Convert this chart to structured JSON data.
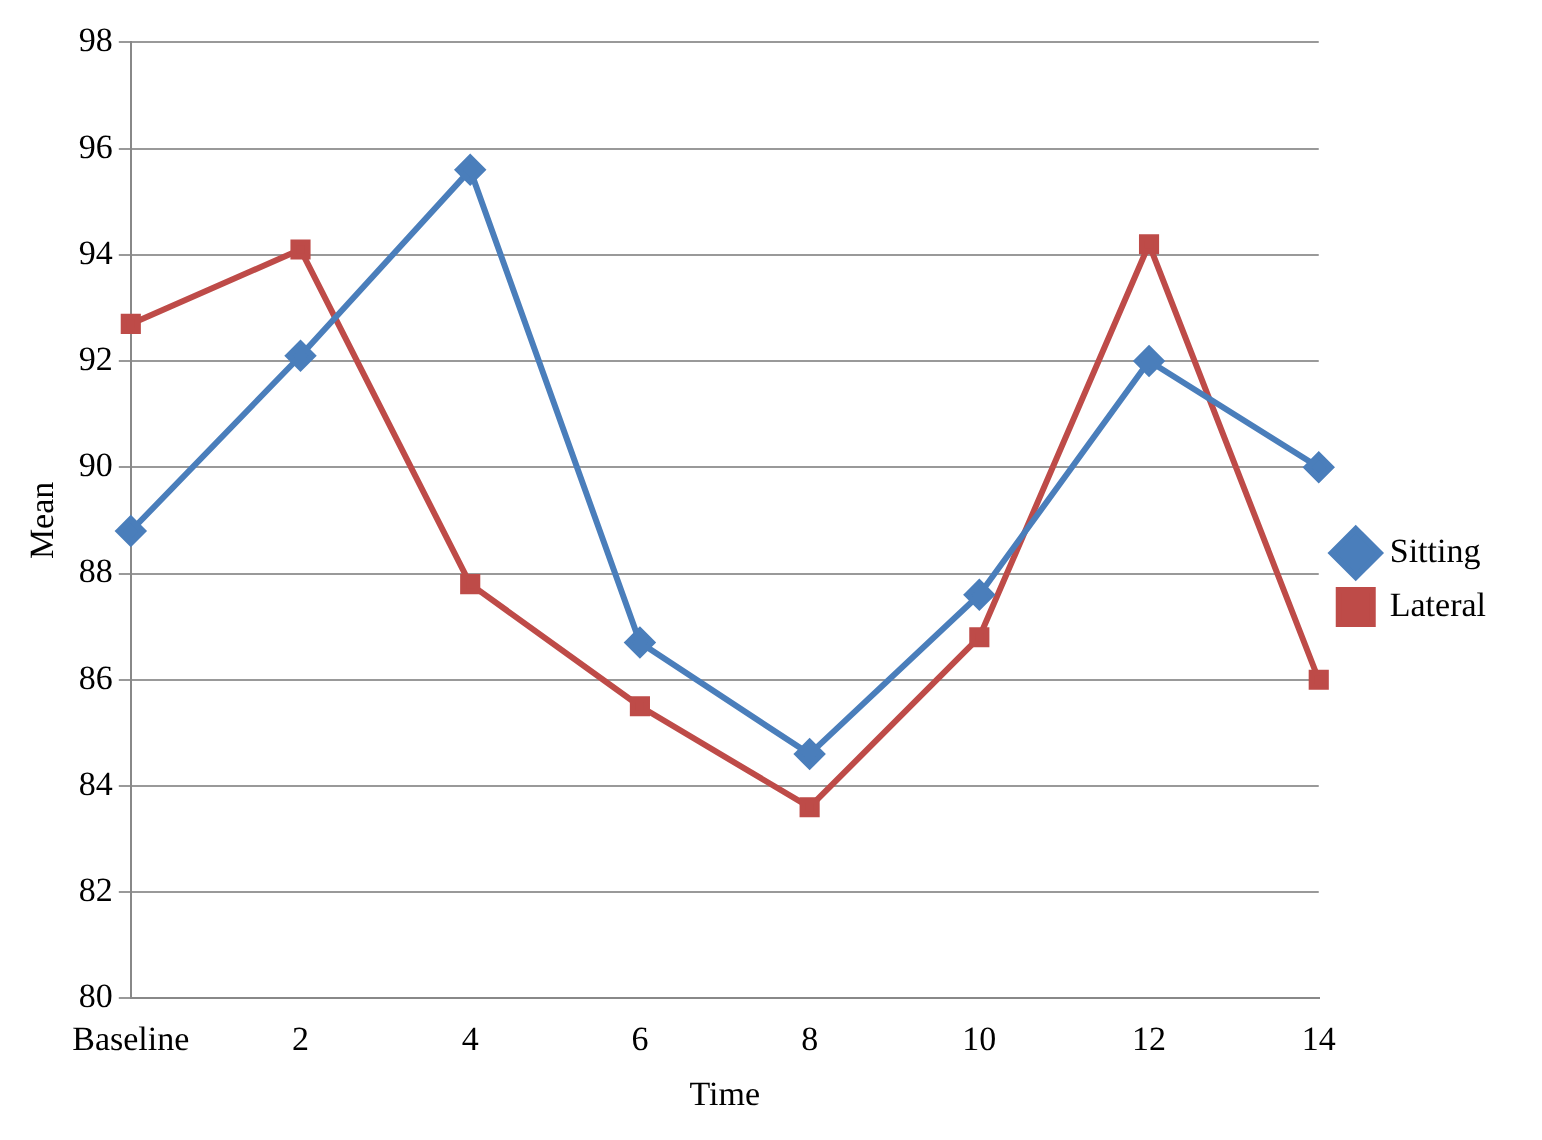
{
  "chart_data": {
    "type": "line",
    "xlabel": "Time",
    "ylabel": "Mean",
    "categories": [
      "Baseline",
      "2",
      "4",
      "6",
      "8",
      "10",
      "12",
      "14"
    ],
    "series": [
      {
        "name": "Sitting",
        "color": "#4a7ebb",
        "marker": "diamond",
        "values": [
          88.8,
          92.1,
          95.6,
          86.7,
          84.6,
          87.6,
          92.0,
          90.0
        ]
      },
      {
        "name": "Lateral",
        "color": "#be4b48",
        "marker": "square",
        "values": [
          92.7,
          94.1,
          87.8,
          85.5,
          83.6,
          86.8,
          94.2,
          86.0
        ]
      }
    ],
    "ylim": [
      80,
      98
    ],
    "yticks": [
      80,
      82,
      84,
      86,
      88,
      90,
      92,
      94,
      96,
      98
    ],
    "grid": "y",
    "legend": "right",
    "line_style": "solid"
  }
}
